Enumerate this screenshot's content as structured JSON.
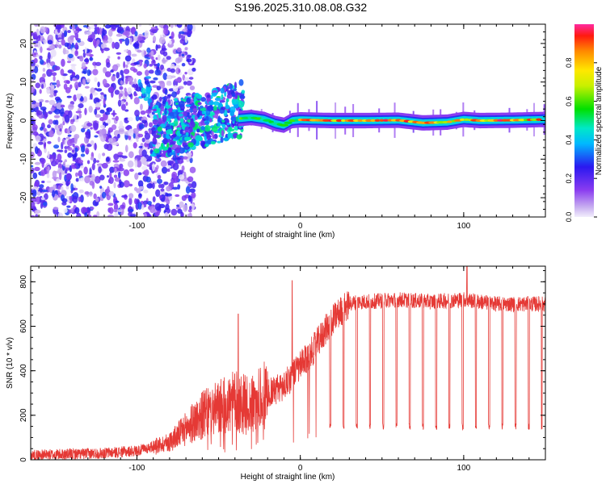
{
  "title": "S196.2025.310.08.08.G32",
  "colors": {
    "snr_line": "#e53935",
    "axis": "#000000",
    "background": "#ffffff"
  },
  "chart_data": [
    {
      "type": "heatmap",
      "xlabel": "Height of straight line (km)",
      "ylabel": "Frequency (Hz)",
      "xlim": [
        -165,
        150
      ],
      "ylim": [
        -25,
        25
      ],
      "x_ticks": [
        -100,
        0,
        100
      ],
      "x_tick_labels": [
        "-100",
        "0",
        "100"
      ],
      "y_ticks": [
        -20,
        -10,
        0,
        10,
        20
      ],
      "y_tick_labels": [
        "-20",
        "-10",
        "0",
        "10",
        "20"
      ],
      "colorbar": {
        "label": "Normalized spectral amplitude",
        "range": [
          0,
          1
        ],
        "ticks": [
          0.0,
          0.2,
          0.4,
          0.6,
          0.8
        ],
        "tick_labels": [
          "0.0",
          "0.2",
          "0.4",
          "0.6",
          "0.8"
        ]
      },
      "ridge": {
        "x": [
          -38,
          -30,
          -22,
          -15,
          -10,
          -5,
          0,
          10,
          20,
          40,
          60,
          75,
          90,
          100,
          110,
          130,
          150
        ],
        "freq": [
          0.5,
          0.8,
          0.3,
          -0.8,
          -1.2,
          0,
          0.2,
          0.1,
          0,
          0,
          0.1,
          -0.6,
          -0.4,
          0.3,
          0,
          0.1,
          0.3
        ]
      }
    },
    {
      "type": "line",
      "xlabel": "Height of straight line (km)",
      "ylabel": "SNR (10 * v/v)",
      "xlim": [
        -165,
        150
      ],
      "ylim": [
        0,
        870
      ],
      "x_ticks": [
        -100,
        0,
        100
      ],
      "x_tick_labels": [
        "-100",
        "0",
        "100"
      ],
      "y_ticks": [
        0,
        200,
        400,
        600,
        800
      ],
      "y_tick_labels": [
        "0",
        "200",
        "400",
        "600",
        "800"
      ],
      "series": [
        {
          "name": "SNR",
          "x": [
            -165,
            -120,
            -100,
            -90,
            -80,
            -70,
            -60,
            -50,
            -40,
            -30,
            -20,
            -10,
            -5,
            0,
            5,
            10,
            15,
            20,
            25,
            30,
            35,
            40,
            60,
            80,
            100,
            120,
            150
          ],
          "mean": [
            20,
            30,
            40,
            60,
            80,
            140,
            200,
            230,
            260,
            240,
            300,
            330,
            380,
            420,
            460,
            520,
            580,
            630,
            670,
            700,
            710,
            710,
            720,
            710,
            720,
            700,
            700
          ],
          "dropouts": {
            "x_start": 18,
            "x_end": 148,
            "spacing": 8.1,
            "depth": 150
          },
          "spikes": [
            {
              "x": -38,
              "y": 655
            },
            {
              "x": -5,
              "y": 805
            },
            {
              "x": 102,
              "y": 870
            }
          ]
        }
      ]
    }
  ]
}
